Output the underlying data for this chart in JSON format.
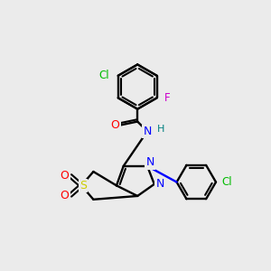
{
  "background_color": "#ebebeb",
  "bond_color": "#000000",
  "atom_colors": {
    "Cl": "#00bb00",
    "F": "#cc00cc",
    "O": "#ff0000",
    "N": "#0000ff",
    "S": "#cccc00",
    "NH": "#008080",
    "C": "#000000"
  }
}
